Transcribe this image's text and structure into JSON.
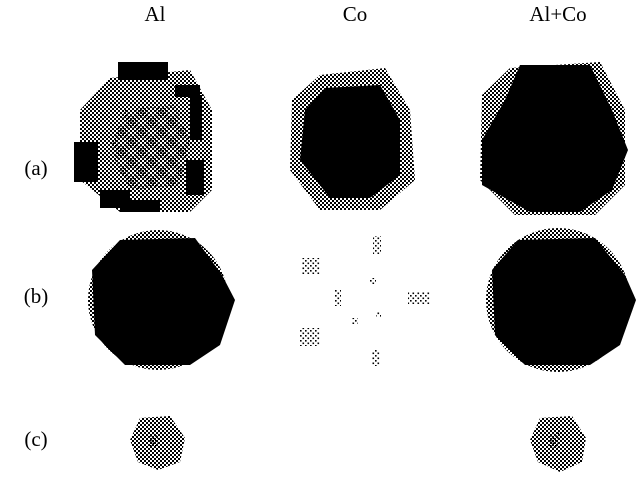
{
  "columns": [
    "Al",
    "Co",
    "Al+Co"
  ],
  "rows": [
    "(a)",
    "(b)",
    "(c)"
  ]
}
